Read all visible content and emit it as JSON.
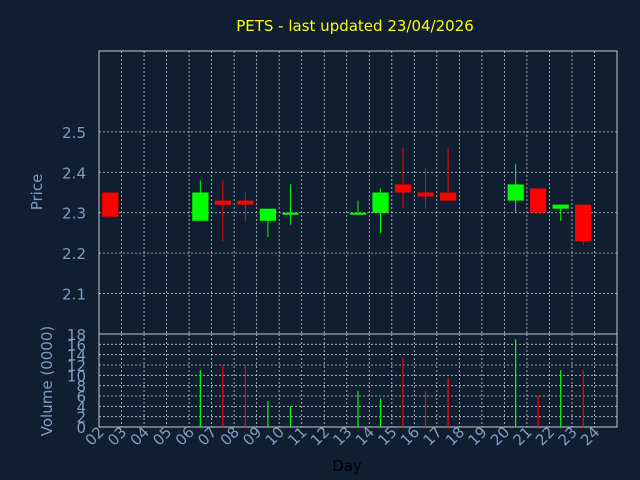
{
  "title": "PETS - last updated 23/04/2026",
  "colors": {
    "background": "#0f1e30",
    "panel": "#0f1e30",
    "axis_text": "#7f9cc0",
    "title": "#ffff00",
    "up": "#00ff00",
    "down": "#ff0000",
    "grid": "#c8c8c8",
    "border": "#c8c8c8"
  },
  "chart_data": [
    {
      "type": "candlestick",
      "ylabel": "Price",
      "ylim": [
        2.0,
        2.7
      ],
      "yticks": [
        2.1,
        2.2,
        2.3,
        2.4,
        2.5
      ],
      "ytick_labels": [
        "2.1",
        "2.2",
        "2.3",
        "2.4",
        "2.5"
      ],
      "x_days": [
        "02",
        "03",
        "04",
        "05",
        "06",
        "07",
        "08",
        "09",
        "10",
        "11",
        "12",
        "13",
        "14",
        "15",
        "16",
        "17",
        "18",
        "19",
        "20",
        "21",
        "22",
        "23",
        "24"
      ],
      "candles": [
        {
          "day": "02",
          "open": 2.35,
          "high": 2.35,
          "low": 2.29,
          "close": 2.29
        },
        {
          "day": "06",
          "open": 2.28,
          "high": 2.38,
          "low": 2.28,
          "close": 2.35
        },
        {
          "day": "07",
          "open": 2.33,
          "high": 2.38,
          "low": 2.23,
          "close": 2.32
        },
        {
          "day": "08",
          "open": 2.33,
          "high": 2.35,
          "low": 2.28,
          "close": 2.32
        },
        {
          "day": "09",
          "open": 2.28,
          "high": 2.31,
          "low": 2.24,
          "close": 2.31
        },
        {
          "day": "10",
          "open": 2.3,
          "high": 2.37,
          "low": 2.27,
          "close": 2.3
        },
        {
          "day": "13",
          "open": 2.3,
          "high": 2.33,
          "low": 2.3,
          "close": 2.3
        },
        {
          "day": "14",
          "open": 2.3,
          "high": 2.36,
          "low": 2.25,
          "close": 2.35
        },
        {
          "day": "15",
          "open": 2.37,
          "high": 2.46,
          "low": 2.31,
          "close": 2.35
        },
        {
          "day": "16",
          "open": 2.35,
          "high": 2.41,
          "low": 2.31,
          "close": 2.34
        },
        {
          "day": "17",
          "open": 2.35,
          "high": 2.46,
          "low": 2.33,
          "close": 2.33
        },
        {
          "day": "20",
          "open": 2.33,
          "high": 2.42,
          "low": 2.3,
          "close": 2.37
        },
        {
          "day": "21",
          "open": 2.36,
          "high": 2.36,
          "low": 2.3,
          "close": 2.3
        },
        {
          "day": "22",
          "open": 2.31,
          "high": 2.32,
          "low": 2.28,
          "close": 2.32
        },
        {
          "day": "23",
          "open": 2.32,
          "high": 2.32,
          "low": 2.22,
          "close": 2.23
        }
      ]
    },
    {
      "type": "bar",
      "ylabel": "Volume (0000)",
      "xlabel": "Day",
      "ylim": [
        0,
        18
      ],
      "yticks": [
        0,
        2,
        4,
        6,
        8,
        10,
        12,
        14,
        16,
        18
      ],
      "ytick_labels": [
        "0",
        "2",
        "4",
        "6",
        "8",
        "10",
        "12",
        "14",
        "16",
        "18"
      ],
      "bars": [
        {
          "day": "06",
          "value": 11,
          "dir": "up"
        },
        {
          "day": "07",
          "value": 12,
          "dir": "down"
        },
        {
          "day": "08",
          "value": 12,
          "dir": "down"
        },
        {
          "day": "09",
          "value": 5,
          "dir": "up"
        },
        {
          "day": "10",
          "value": 4,
          "dir": "up"
        },
        {
          "day": "13",
          "value": 7,
          "dir": "up"
        },
        {
          "day": "14",
          "value": 5.5,
          "dir": "up"
        },
        {
          "day": "15",
          "value": 13.5,
          "dir": "down"
        },
        {
          "day": "16",
          "value": 7,
          "dir": "down"
        },
        {
          "day": "17",
          "value": 9.5,
          "dir": "down"
        },
        {
          "day": "20",
          "value": 17,
          "dir": "up"
        },
        {
          "day": "21",
          "value": 6,
          "dir": "down"
        },
        {
          "day": "22",
          "value": 11,
          "dir": "up"
        },
        {
          "day": "23",
          "value": 11,
          "dir": "down"
        }
      ]
    }
  ]
}
